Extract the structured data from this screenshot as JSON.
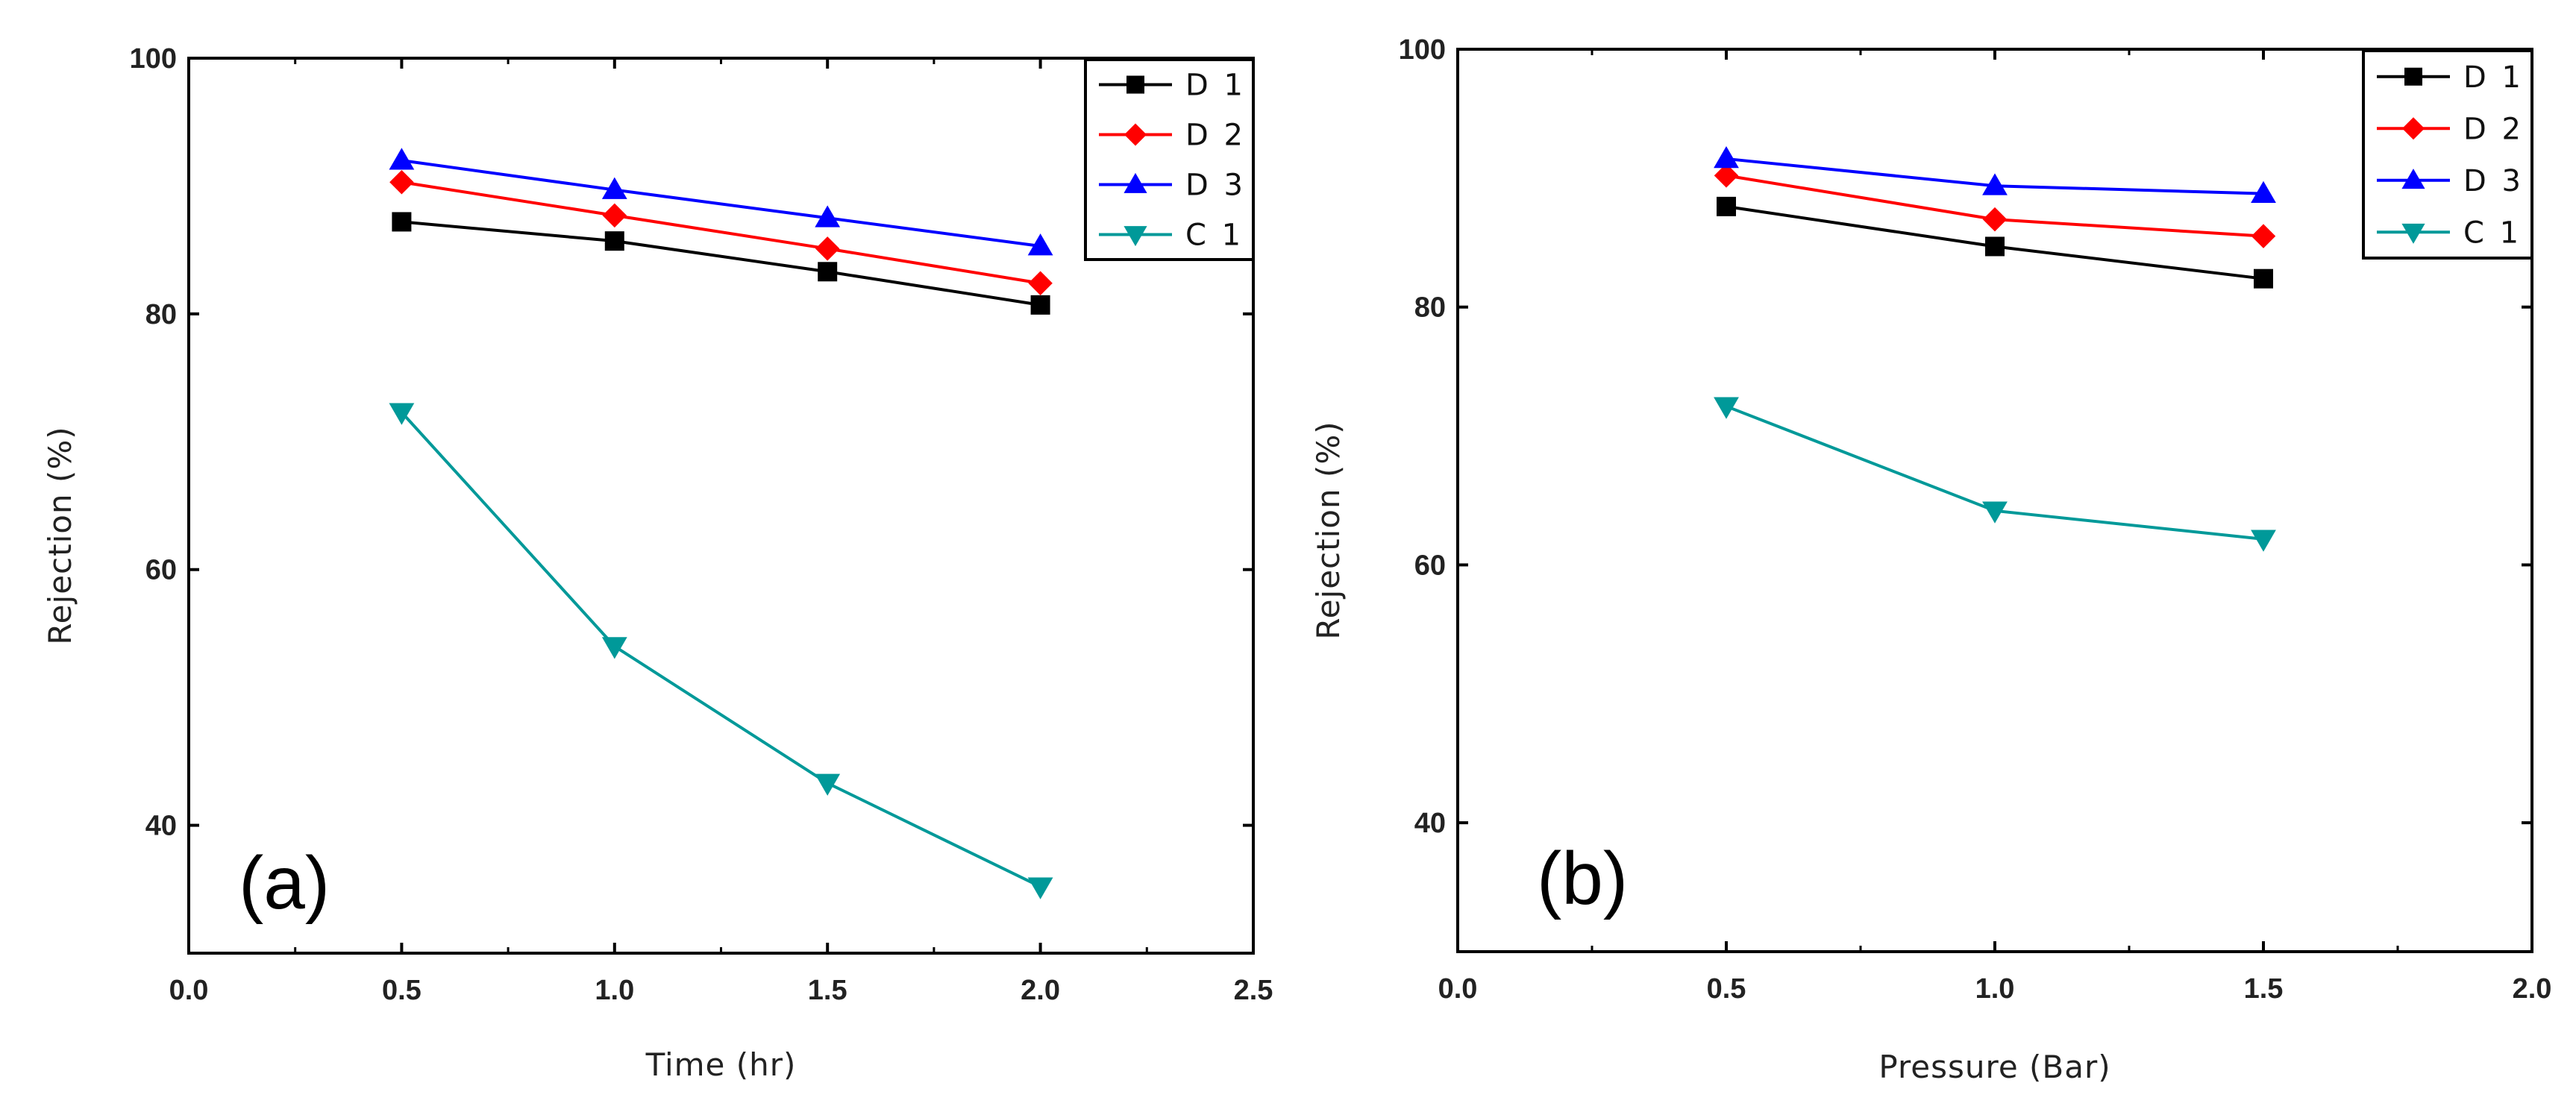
{
  "chart_data": [
    {
      "type": "line",
      "panel_label": "(a)",
      "xlabel": "Time (hr)",
      "ylabel": "Rejection (%)",
      "xlim": [
        0.0,
        2.5
      ],
      "ylim": [
        30,
        100
      ],
      "xticks": [
        "0.0",
        "0.5",
        "1.0",
        "1.5",
        "2.0",
        "2.5"
      ],
      "yticks": [
        "40",
        "60",
        "80",
        "100"
      ],
      "legend_position": "top-right",
      "x": [
        0.5,
        1.0,
        1.5,
        2.0
      ],
      "series": [
        {
          "name": "D 1",
          "color": "#000000",
          "marker": "square",
          "values": [
            87.2,
            85.7,
            83.3,
            80.7
          ]
        },
        {
          "name": "D 2",
          "color": "#ff0000",
          "marker": "diamond",
          "values": [
            90.3,
            87.7,
            85.1,
            82.4
          ]
        },
        {
          "name": "D 3",
          "color": "#0000ff",
          "marker": "triangle-up",
          "values": [
            92.0,
            89.7,
            87.5,
            85.3
          ]
        },
        {
          "name": "C 1",
          "color": "#009999",
          "marker": "triangle-down",
          "values": [
            72.3,
            54.0,
            43.3,
            35.2
          ]
        }
      ]
    },
    {
      "type": "line",
      "panel_label": "(b)",
      "xlabel": "Pressure (Bar)",
      "ylabel": "Rejection (%)",
      "xlim": [
        0.0,
        2.0
      ],
      "ylim": [
        30,
        100
      ],
      "xticks": [
        "0.0",
        "0.5",
        "1.0",
        "1.5",
        "2.0"
      ],
      "yticks": [
        "40",
        "60",
        "80",
        "100"
      ],
      "legend_position": "top-right",
      "x": [
        0.5,
        1.0,
        1.5
      ],
      "series": [
        {
          "name": "D 1",
          "color": "#000000",
          "marker": "square",
          "values": [
            87.8,
            84.7,
            82.2
          ]
        },
        {
          "name": "D 2",
          "color": "#ff0000",
          "marker": "diamond",
          "values": [
            90.2,
            86.8,
            85.5
          ]
        },
        {
          "name": "D 3",
          "color": "#0000ff",
          "marker": "triangle-up",
          "values": [
            91.5,
            89.4,
            88.8
          ]
        },
        {
          "name": "C 1",
          "color": "#009999",
          "marker": "triangle-down",
          "values": [
            72.3,
            64.2,
            62.0
          ]
        }
      ]
    }
  ]
}
